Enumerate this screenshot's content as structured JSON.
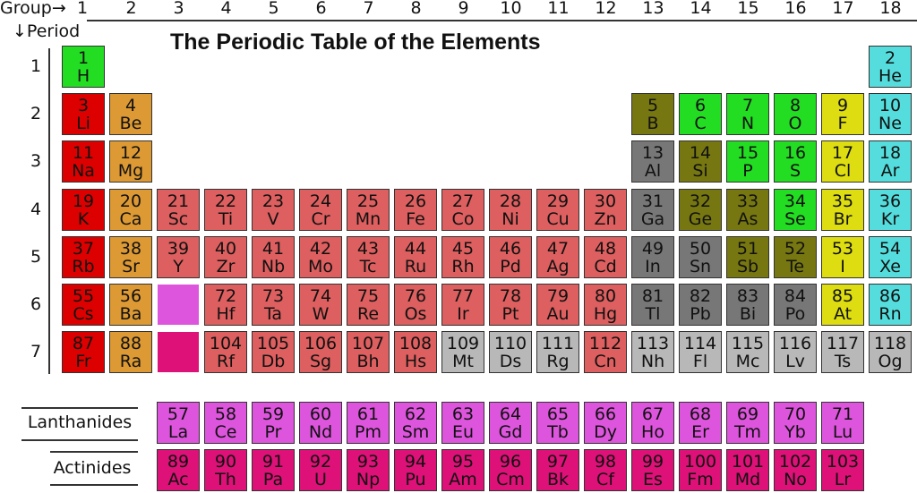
{
  "title": "The Periodic Table of the Elements",
  "group_axis_label": "Group→",
  "period_axis_label": "↓Period",
  "groups": [
    "1",
    "2",
    "3",
    "4",
    "5",
    "6",
    "7",
    "8",
    "9",
    "10",
    "11",
    "12",
    "13",
    "14",
    "15",
    "16",
    "17",
    "18"
  ],
  "periods": [
    "1",
    "2",
    "3",
    "4",
    "5",
    "6",
    "7"
  ],
  "series_labels": {
    "lanthanides": "Lanthanides",
    "actinides": "Actinides"
  },
  "category_colors": {
    "alkali": "#dd0000",
    "alkaline": "#dd9933",
    "transition": "#dd5f5f",
    "nonmetal": "#22dd22",
    "halogen": "#dddd11",
    "noble": "#55dddd",
    "metalloid": "#777711",
    "post": "#777777",
    "unknown": "#b8b8b8",
    "lanthanide": "#dd55dd",
    "actinide": "#dd1177"
  },
  "placeholders": [
    {
      "group": 3,
      "period": 6,
      "category": "lanthanide"
    },
    {
      "group": 3,
      "period": 7,
      "category": "actinide"
    }
  ],
  "elements": [
    [
      1,
      "H",
      "nonmetal",
      1,
      1
    ],
    [
      2,
      "He",
      "noble",
      18,
      1
    ],
    [
      3,
      "Li",
      "alkali",
      1,
      2
    ],
    [
      4,
      "Be",
      "alkaline",
      2,
      2
    ],
    [
      5,
      "B",
      "metalloid",
      13,
      2
    ],
    [
      6,
      "C",
      "nonmetal",
      14,
      2
    ],
    [
      7,
      "N",
      "nonmetal",
      15,
      2
    ],
    [
      8,
      "O",
      "nonmetal",
      16,
      2
    ],
    [
      9,
      "F",
      "halogen",
      17,
      2
    ],
    [
      10,
      "Ne",
      "noble",
      18,
      2
    ],
    [
      11,
      "Na",
      "alkali",
      1,
      3
    ],
    [
      12,
      "Mg",
      "alkaline",
      2,
      3
    ],
    [
      13,
      "Al",
      "post",
      13,
      3
    ],
    [
      14,
      "Si",
      "metalloid",
      14,
      3
    ],
    [
      15,
      "P",
      "nonmetal",
      15,
      3
    ],
    [
      16,
      "S",
      "nonmetal",
      16,
      3
    ],
    [
      17,
      "Cl",
      "halogen",
      17,
      3
    ],
    [
      18,
      "Ar",
      "noble",
      18,
      3
    ],
    [
      19,
      "K",
      "alkali",
      1,
      4
    ],
    [
      20,
      "Ca",
      "alkaline",
      2,
      4
    ],
    [
      21,
      "Sc",
      "transition",
      3,
      4
    ],
    [
      22,
      "Ti",
      "transition",
      4,
      4
    ],
    [
      23,
      "V",
      "transition",
      5,
      4
    ],
    [
      24,
      "Cr",
      "transition",
      6,
      4
    ],
    [
      25,
      "Mn",
      "transition",
      7,
      4
    ],
    [
      26,
      "Fe",
      "transition",
      8,
      4
    ],
    [
      27,
      "Co",
      "transition",
      9,
      4
    ],
    [
      28,
      "Ni",
      "transition",
      10,
      4
    ],
    [
      29,
      "Cu",
      "transition",
      11,
      4
    ],
    [
      30,
      "Zn",
      "transition",
      12,
      4
    ],
    [
      31,
      "Ga",
      "post",
      13,
      4
    ],
    [
      32,
      "Ge",
      "metalloid",
      14,
      4
    ],
    [
      33,
      "As",
      "metalloid",
      15,
      4
    ],
    [
      34,
      "Se",
      "nonmetal",
      16,
      4
    ],
    [
      35,
      "Br",
      "halogen",
      17,
      4
    ],
    [
      36,
      "Kr",
      "noble",
      18,
      4
    ],
    [
      37,
      "Rb",
      "alkali",
      1,
      5
    ],
    [
      38,
      "Sr",
      "alkaline",
      2,
      5
    ],
    [
      39,
      "Y",
      "transition",
      3,
      5
    ],
    [
      40,
      "Zr",
      "transition",
      4,
      5
    ],
    [
      41,
      "Nb",
      "transition",
      5,
      5
    ],
    [
      42,
      "Mo",
      "transition",
      6,
      5
    ],
    [
      43,
      "Tc",
      "transition",
      7,
      5
    ],
    [
      44,
      "Ru",
      "transition",
      8,
      5
    ],
    [
      45,
      "Rh",
      "transition",
      9,
      5
    ],
    [
      46,
      "Pd",
      "transition",
      10,
      5
    ],
    [
      47,
      "Ag",
      "transition",
      11,
      5
    ],
    [
      48,
      "Cd",
      "transition",
      12,
      5
    ],
    [
      49,
      "In",
      "post",
      13,
      5
    ],
    [
      50,
      "Sn",
      "post",
      14,
      5
    ],
    [
      51,
      "Sb",
      "metalloid",
      15,
      5
    ],
    [
      52,
      "Te",
      "metalloid",
      16,
      5
    ],
    [
      53,
      "I",
      "halogen",
      17,
      5
    ],
    [
      54,
      "Xe",
      "noble",
      18,
      5
    ],
    [
      55,
      "Cs",
      "alkali",
      1,
      6
    ],
    [
      56,
      "Ba",
      "alkaline",
      2,
      6
    ],
    [
      72,
      "Hf",
      "transition",
      4,
      6
    ],
    [
      73,
      "Ta",
      "transition",
      5,
      6
    ],
    [
      74,
      "W",
      "transition",
      6,
      6
    ],
    [
      75,
      "Re",
      "transition",
      7,
      6
    ],
    [
      76,
      "Os",
      "transition",
      8,
      6
    ],
    [
      77,
      "Ir",
      "transition",
      9,
      6
    ],
    [
      78,
      "Pt",
      "transition",
      10,
      6
    ],
    [
      79,
      "Au",
      "transition",
      11,
      6
    ],
    [
      80,
      "Hg",
      "transition",
      12,
      6
    ],
    [
      81,
      "Tl",
      "post",
      13,
      6
    ],
    [
      82,
      "Pb",
      "post",
      14,
      6
    ],
    [
      83,
      "Bi",
      "post",
      15,
      6
    ],
    [
      84,
      "Po",
      "post",
      16,
      6
    ],
    [
      85,
      "At",
      "halogen",
      17,
      6
    ],
    [
      86,
      "Rn",
      "noble",
      18,
      6
    ],
    [
      87,
      "Fr",
      "alkali",
      1,
      7
    ],
    [
      88,
      "Ra",
      "alkaline",
      2,
      7
    ],
    [
      104,
      "Rf",
      "transition",
      4,
      7
    ],
    [
      105,
      "Db",
      "transition",
      5,
      7
    ],
    [
      106,
      "Sg",
      "transition",
      6,
      7
    ],
    [
      107,
      "Bh",
      "transition",
      7,
      7
    ],
    [
      108,
      "Hs",
      "transition",
      8,
      7
    ],
    [
      109,
      "Mt",
      "unknown",
      9,
      7
    ],
    [
      110,
      "Ds",
      "unknown",
      10,
      7
    ],
    [
      111,
      "Rg",
      "unknown",
      11,
      7
    ],
    [
      112,
      "Cn",
      "transition",
      12,
      7
    ],
    [
      113,
      "Nh",
      "unknown",
      13,
      7
    ],
    [
      114,
      "Fl",
      "unknown",
      14,
      7
    ],
    [
      115,
      "Mc",
      "unknown",
      15,
      7
    ],
    [
      116,
      "Lv",
      "unknown",
      16,
      7
    ],
    [
      117,
      "Ts",
      "unknown",
      17,
      7
    ],
    [
      118,
      "Og",
      "unknown",
      18,
      7
    ]
  ],
  "lanthanides": [
    [
      57,
      "La"
    ],
    [
      58,
      "Ce"
    ],
    [
      59,
      "Pr"
    ],
    [
      60,
      "Nd"
    ],
    [
      61,
      "Pm"
    ],
    [
      62,
      "Sm"
    ],
    [
      63,
      "Eu"
    ],
    [
      64,
      "Gd"
    ],
    [
      65,
      "Tb"
    ],
    [
      66,
      "Dy"
    ],
    [
      67,
      "Ho"
    ],
    [
      68,
      "Er"
    ],
    [
      69,
      "Tm"
    ],
    [
      70,
      "Yb"
    ],
    [
      71,
      "Lu"
    ]
  ],
  "actinides": [
    [
      89,
      "Ac"
    ],
    [
      90,
      "Th"
    ],
    [
      91,
      "Pa"
    ],
    [
      92,
      "U"
    ],
    [
      93,
      "Np"
    ],
    [
      94,
      "Pu"
    ],
    [
      95,
      "Am"
    ],
    [
      96,
      "Cm"
    ],
    [
      97,
      "Bk"
    ],
    [
      98,
      "Cf"
    ],
    [
      99,
      "Es"
    ],
    [
      100,
      "Fm"
    ],
    [
      101,
      "Md"
    ],
    [
      102,
      "No"
    ],
    [
      103,
      "Lr"
    ]
  ]
}
